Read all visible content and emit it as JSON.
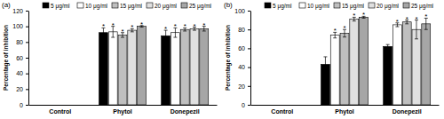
{
  "chart_data": [
    {
      "type": "bar",
      "title": "(a)",
      "y_label": "Percentage of inhibition",
      "categories": [
        "Control",
        "Phytol",
        "Donepezil"
      ],
      "ylim": [
        0,
        120
      ],
      "yticks": [
        0,
        20,
        40,
        60,
        80,
        100,
        120
      ],
      "grid": false,
      "legend": "top",
      "series": [
        {
          "name": "5 μg/ml",
          "color": "#000000",
          "values": [
            0,
            92,
            88
          ],
          "errors": [
            null,
            6,
            7
          ],
          "annotations": [
            null,
            "*",
            "*"
          ]
        },
        {
          "name": "10 μg/ml",
          "color": "#ffffff",
          "values": [
            0,
            93,
            92
          ],
          "errors": [
            null,
            7,
            6
          ],
          "annotations": [
            null,
            "*",
            "*"
          ]
        },
        {
          "name": "15 μg/ml",
          "color": "#bfbfbf",
          "values": [
            0,
            89,
            96
          ],
          "errors": [
            null,
            3,
            2
          ],
          "annotations": [
            null,
            "*",
            "*"
          ]
        },
        {
          "name": "20 μg/ml",
          "color": "#e0e0e0",
          "values": [
            0,
            95,
            97
          ],
          "errors": [
            null,
            2,
            2
          ],
          "annotations": [
            null,
            "*",
            "*"
          ]
        },
        {
          "name": "25 μg/ml",
          "color": "#a6a6a6",
          "values": [
            0,
            100,
            97
          ],
          "errors": [
            null,
            1,
            3
          ],
          "annotations": [
            null,
            "*",
            "*"
          ]
        }
      ]
    },
    {
      "type": "bar",
      "title": "(b)",
      "y_label": "Percentage of inhibition",
      "categories": [
        "Control",
        "Phytol",
        "Donepezil"
      ],
      "ylim": [
        0,
        100
      ],
      "yticks": [
        0,
        20,
        40,
        60,
        80,
        100
      ],
      "grid": false,
      "legend": "top",
      "series": [
        {
          "name": "5 μg/ml",
          "color": "#000000",
          "values": [
            0,
            43,
            62
          ],
          "errors": [
            null,
            8,
            2
          ],
          "annotations": [
            null,
            null,
            null
          ]
        },
        {
          "name": "10 μg/ml",
          "color": "#ffffff",
          "values": [
            0,
            74,
            85
          ],
          "errors": [
            null,
            3,
            2
          ],
          "annotations": [
            null,
            "*",
            "*"
          ]
        },
        {
          "name": "15 μg/ml",
          "color": "#bfbfbf",
          "values": [
            0,
            76,
            88
          ],
          "errors": [
            null,
            4,
            2
          ],
          "annotations": [
            null,
            "*",
            "*"
          ]
        },
        {
          "name": "20 μg/ml",
          "color": "#e0e0e0",
          "values": [
            0,
            91,
            80
          ],
          "errors": [
            null,
            2,
            10
          ],
          "annotations": [
            null,
            "*",
            "*"
          ]
        },
        {
          "name": "25 μg/ml",
          "color": "#a6a6a6",
          "values": [
            0,
            93,
            86
          ],
          "errors": [
            null,
            1,
            6
          ],
          "annotations": [
            null,
            "*",
            "*"
          ]
        }
      ]
    }
  ]
}
